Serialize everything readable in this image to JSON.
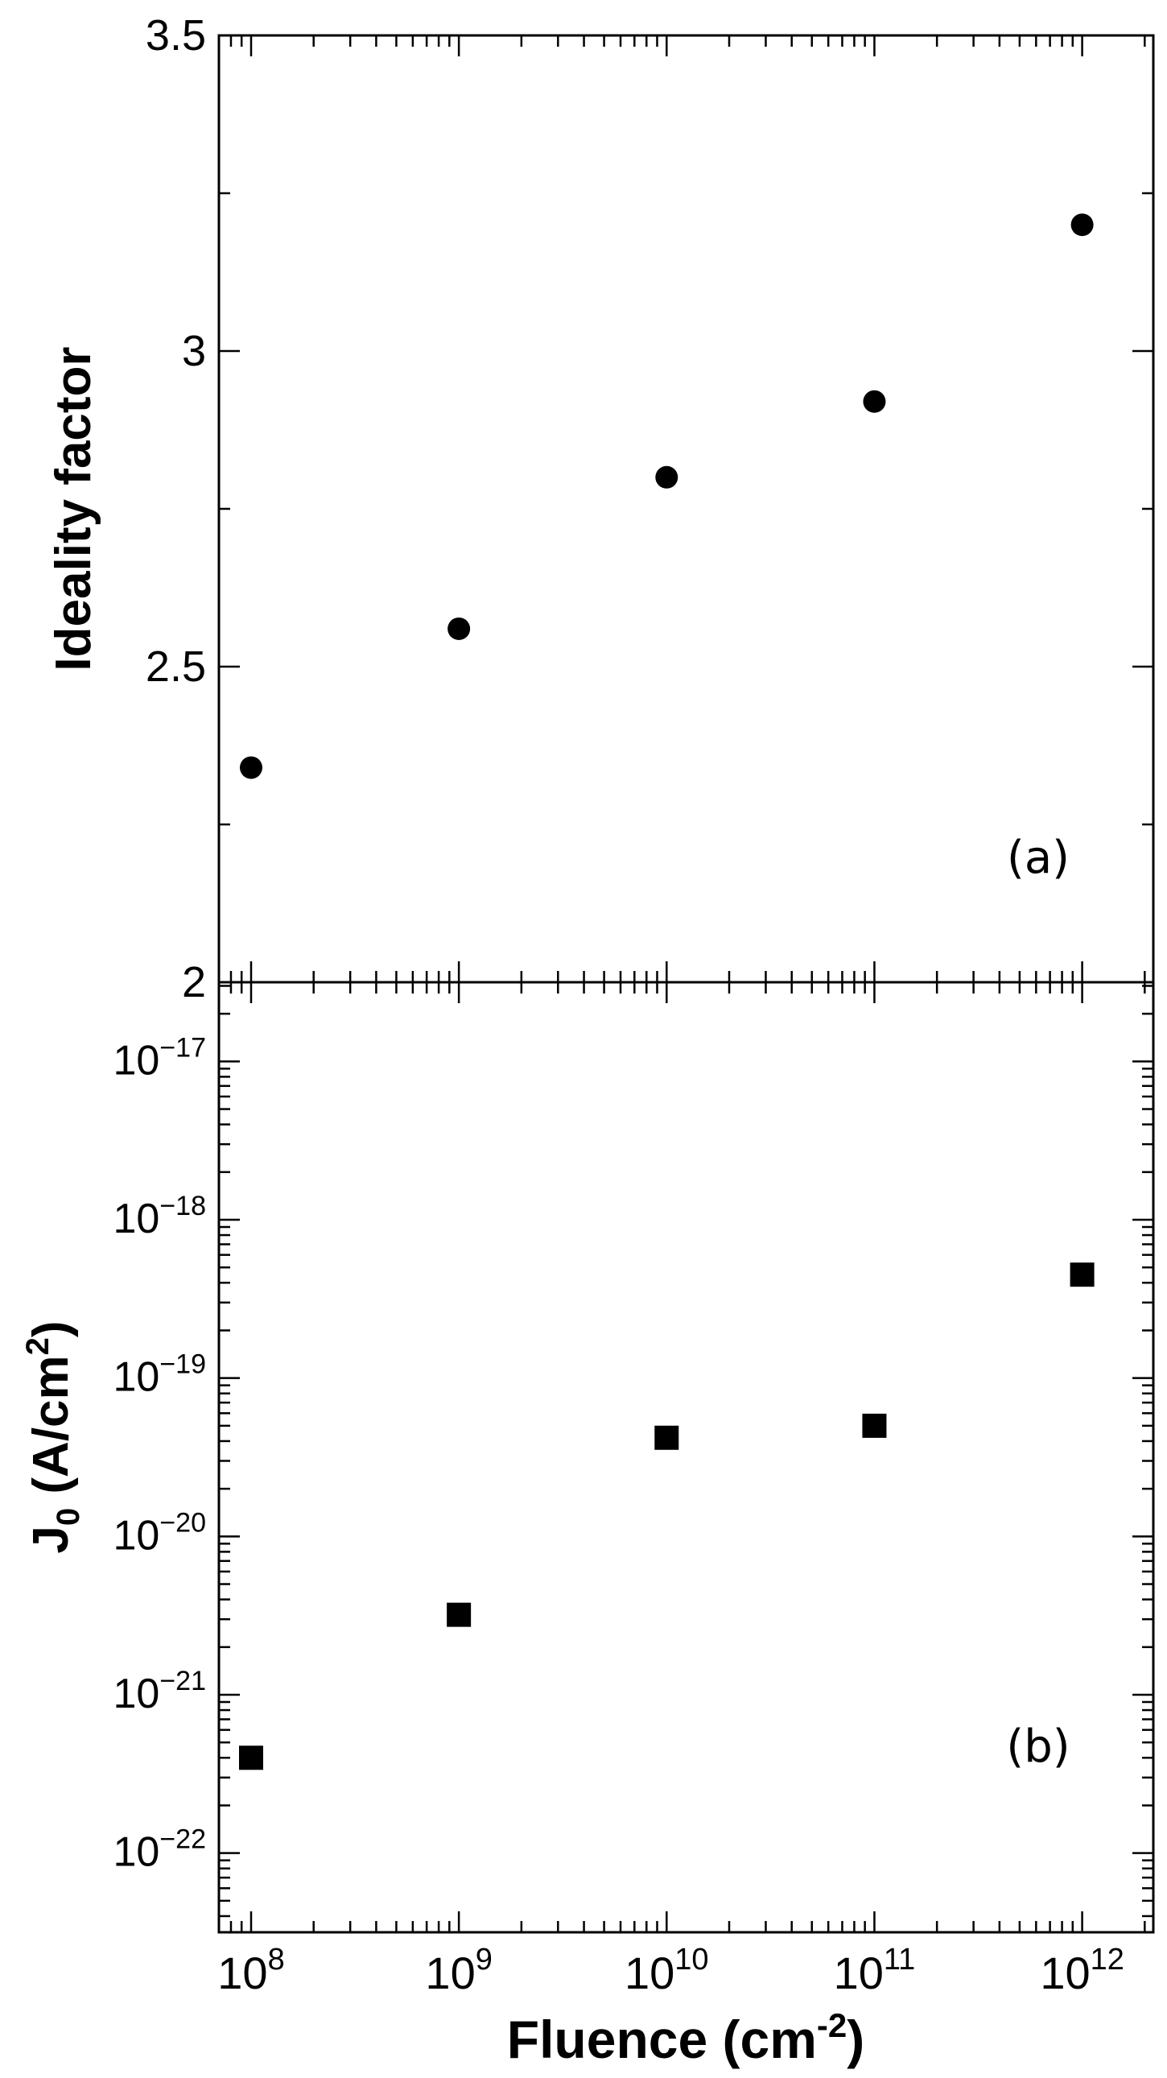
{
  "chart_data": [
    {
      "panel": "a",
      "type": "scatter",
      "panel_label": "(a)",
      "xlabel": "",
      "ylabel": "Ideality factor",
      "x_scale": "log",
      "xlim": [
        70000000,
        2200000000000
      ],
      "ylim": [
        2,
        3.5
      ],
      "y_ticks": [
        2,
        2.5,
        3,
        3.5
      ],
      "y_tick_labels": [
        "2",
        "2.5",
        "3",
        "3.5"
      ],
      "marker": "circle",
      "grid": false,
      "points": [
        {
          "x": 100000000,
          "y": 2.34
        },
        {
          "x": 1000000000,
          "y": 2.56
        },
        {
          "x": 10000000000,
          "y": 2.8
        },
        {
          "x": 100000000000,
          "y": 2.92
        },
        {
          "x": 1000000000000,
          "y": 3.2
        }
      ]
    },
    {
      "panel": "b",
      "type": "scatter",
      "panel_label": "(b)",
      "xlabel": "Fluence (cm",
      "xlabel_sup": "-2",
      "xlabel_end": ")",
      "ylabel": "J",
      "ylabel_sub": "0",
      "ylabel_mid": " (A/cm",
      "ylabel_sup": "2",
      "ylabel_end": ")",
      "x_scale": "log",
      "y_scale": "log",
      "xlim": [
        70000000,
        2200000000000
      ],
      "ylim_exp": [
        -22.5,
        -16.5
      ],
      "x_ticks": [
        {
          "base": "10",
          "exp": "8"
        },
        {
          "base": "10",
          "exp": "9"
        },
        {
          "base": "10",
          "exp": "10"
        },
        {
          "base": "10",
          "exp": "11"
        },
        {
          "base": "10",
          "exp": "12"
        }
      ],
      "y_ticks": [
        {
          "base": "10",
          "exp": "−22"
        },
        {
          "base": "10",
          "exp": "−21"
        },
        {
          "base": "10",
          "exp": "−20"
        },
        {
          "base": "10",
          "exp": "−19"
        },
        {
          "base": "10",
          "exp": "−18"
        },
        {
          "base": "10",
          "exp": "−17"
        }
      ],
      "marker": "square",
      "grid": false,
      "points": [
        {
          "x": 100000000,
          "y": 4e-22
        },
        {
          "x": 1000000000,
          "y": 3.2e-21
        },
        {
          "x": 10000000000,
          "y": 4.2e-20
        },
        {
          "x": 100000000000,
          "y": 5e-20
        },
        {
          "x": 1000000000000,
          "y": 4.5e-19
        }
      ]
    }
  ]
}
